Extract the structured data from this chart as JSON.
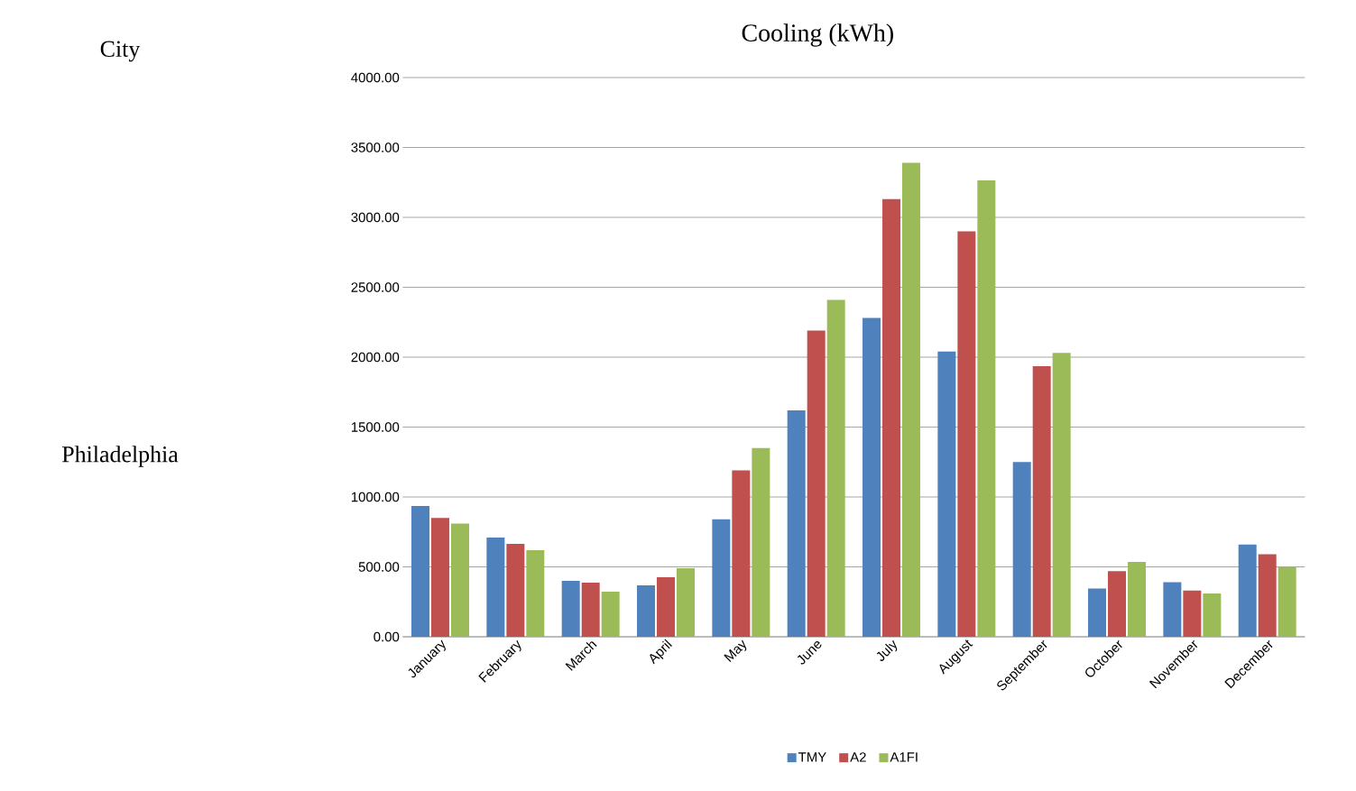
{
  "chart_data": {
    "type": "bar",
    "title": "Cooling (kWh)",
    "annotations": [
      "City",
      "Philadelphia"
    ],
    "categories": [
      "January",
      "February",
      "March",
      "April",
      "May",
      "June",
      "July",
      "August",
      "September",
      "October",
      "November",
      "December"
    ],
    "series": [
      {
        "name": "TMY",
        "color": "#4f81bd",
        "values": [
          935,
          710,
          400,
          368,
          840,
          1620,
          2280,
          2040,
          1250,
          345,
          390,
          660
        ]
      },
      {
        "name": "A2",
        "color": "#c0504d",
        "values": [
          850,
          665,
          387,
          426,
          1190,
          2190,
          3130,
          2900,
          1935,
          470,
          330,
          590
        ]
      },
      {
        "name": "A1FI",
        "color": "#9bbb59",
        "values": [
          810,
          620,
          323,
          490,
          1350,
          2410,
          3390,
          3265,
          2030,
          535,
          310,
          500
        ]
      }
    ],
    "ylim": [
      0,
      4000
    ],
    "yticks": [
      {
        "value": 0,
        "label": "0.00"
      },
      {
        "value": 500,
        "label": "500.00"
      },
      {
        "value": 1000,
        "label": "1000.00"
      },
      {
        "value": 1500,
        "label": "1500.00"
      },
      {
        "value": 2000,
        "label": "2000.00"
      },
      {
        "value": 2500,
        "label": "2500.00"
      },
      {
        "value": 3000,
        "label": "3000.00"
      },
      {
        "value": 3500,
        "label": "3500.00"
      },
      {
        "value": 4000,
        "label": "4000.00"
      }
    ],
    "grid": "y",
    "legend": "bottom"
  }
}
